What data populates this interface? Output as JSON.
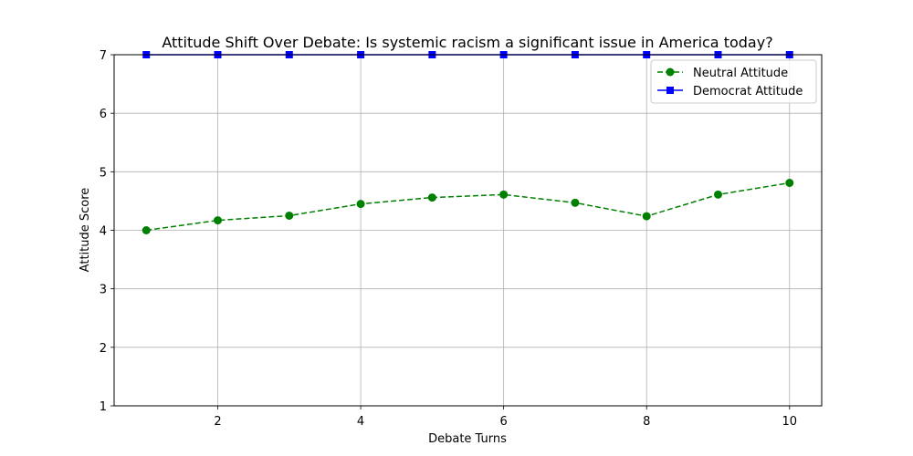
{
  "chart_data": {
    "type": "line",
    "title": "Attitude Shift Over Debate: Is systemic racism a significant issue in America today?",
    "xlabel": "Debate Turns",
    "ylabel": "Attitude Score",
    "x": [
      1,
      2,
      3,
      4,
      5,
      6,
      7,
      8,
      9,
      10
    ],
    "xlim": [
      0.55,
      10.45
    ],
    "ylim": [
      1,
      7
    ],
    "xticks": [
      2,
      4,
      6,
      8,
      10
    ],
    "yticks": [
      1,
      2,
      3,
      4,
      5,
      6,
      7
    ],
    "grid": true,
    "legend_position": "top-right",
    "series": [
      {
        "name": "Neutral Attitude",
        "values": [
          4.0,
          4.17,
          4.25,
          4.45,
          4.56,
          4.61,
          4.47,
          4.24,
          4.61,
          4.81
        ],
        "color": "#008000",
        "line_style": "dashed",
        "marker": "circle"
      },
      {
        "name": "Democrat Attitude",
        "values": [
          7,
          7,
          7,
          7,
          7,
          7,
          7,
          7,
          7,
          7
        ],
        "color": "#0000ff",
        "line_style": "solid",
        "marker": "square"
      }
    ]
  }
}
